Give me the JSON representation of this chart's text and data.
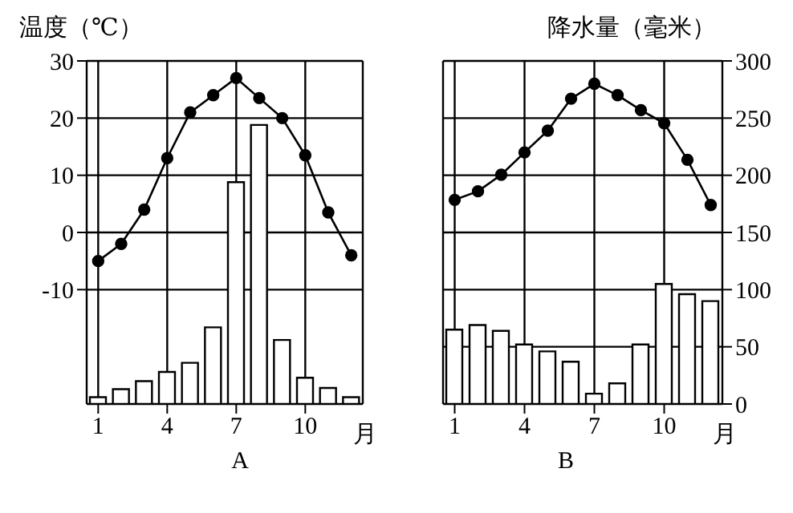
{
  "chart_data": [
    {
      "type": "bar",
      "title": "A",
      "xlabel": "月",
      "ylabel": "温度（℃）",
      "x": [
        1,
        2,
        3,
        4,
        5,
        6,
        7,
        8,
        9,
        10,
        11,
        12
      ],
      "xlim": [
        0.5,
        12.5
      ],
      "xticks": [
        1,
        4,
        7,
        10
      ],
      "ylim": [
        -30,
        30
      ],
      "yticks": [
        -10,
        0,
        10,
        20,
        30
      ],
      "y2lim": [
        0,
        300
      ],
      "grid": true,
      "marker": "circle",
      "series": [
        {
          "axis": "y2",
          "color": "#ffffff",
          "values": [
            6,
            13,
            20,
            28,
            36,
            67,
            194,
            244,
            56,
            23,
            14,
            6
          ]
        },
        {
          "type": "line",
          "color": "#000000",
          "values": [
            -5,
            -2,
            4,
            13,
            21,
            24,
            27,
            23.5,
            20,
            13.5,
            3.5,
            -4
          ]
        }
      ]
    },
    {
      "type": "bar",
      "title": "B",
      "xlabel": "月",
      "y2label": "降水量（毫米）",
      "x": [
        1,
        2,
        3,
        4,
        5,
        6,
        7,
        8,
        9,
        10,
        11,
        12
      ],
      "xlim": [
        0.5,
        12.5
      ],
      "xticks": [
        1,
        4,
        7,
        10
      ],
      "ylim": [
        -30,
        30
      ],
      "y2lim": [
        0,
        300
      ],
      "y2ticks": [
        0,
        50,
        100,
        150,
        200,
        250,
        300
      ],
      "grid": true,
      "marker": "circle",
      "series": [
        {
          "axis": "y2",
          "color": "#ffffff",
          "values": [
            65,
            69,
            64,
            52,
            46,
            37,
            9,
            18,
            52,
            105,
            96,
            90
          ]
        },
        {
          "type": "line",
          "color": "#000000",
          "values": [
            5.7,
            7.2,
            10.1,
            14,
            17.8,
            23.4,
            26,
            24,
            21.4,
            19.1,
            12.7,
            4.8
          ]
        }
      ]
    }
  ]
}
